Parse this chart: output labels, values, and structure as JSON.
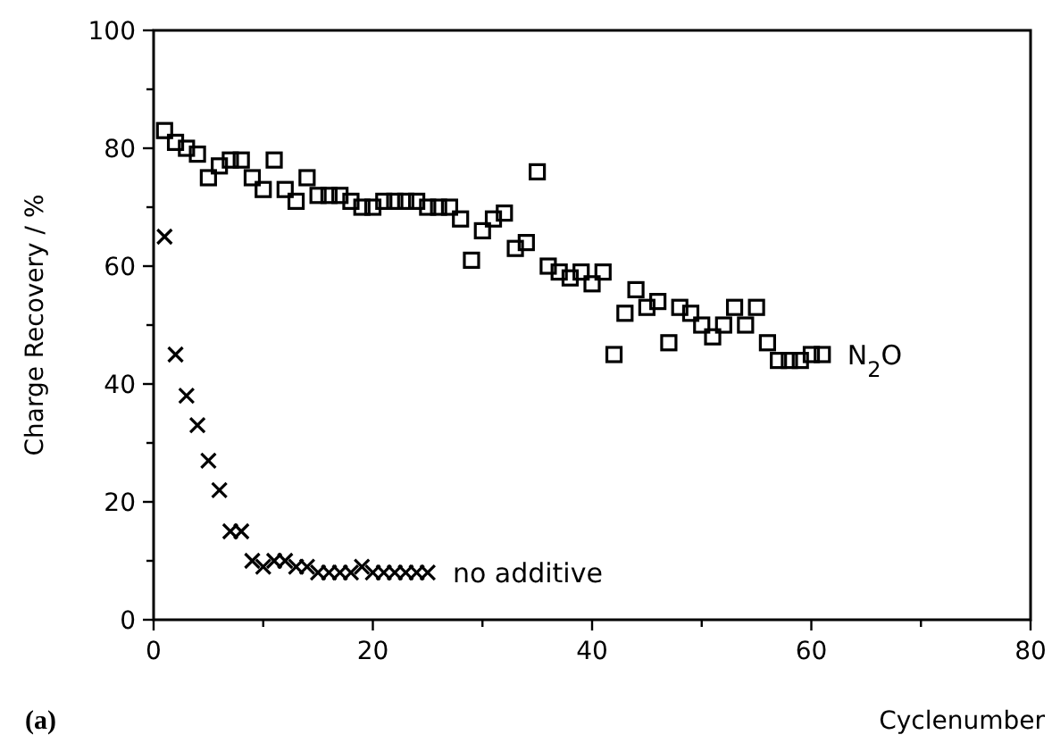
{
  "chart_data": {
    "type": "scatter",
    "xlabel": "Cyclenumber",
    "ylabel": "Charge Recovery / %",
    "xlim": [
      0,
      80
    ],
    "xticks": [
      0,
      {
        "value": 10,
        "label": null
      },
      20,
      {
        "value": 30,
        "label": null
      },
      40,
      {
        "value": 50,
        "label": null
      },
      60,
      {
        "value": 70,
        "label": null
      },
      80
    ],
    "ylim": [
      0,
      100
    ],
    "yticks": [
      0,
      {
        "value": 10,
        "label": null
      },
      20,
      {
        "value": 30,
        "label": null
      },
      40,
      {
        "value": 50,
        "label": null
      },
      60,
      {
        "value": 70,
        "label": null
      },
      80,
      {
        "value": 90,
        "label": null
      },
      100
    ],
    "grid": false,
    "legend": false,
    "annotations": [
      "(a)"
    ],
    "series": [
      {
        "name": "N$_{2}$O",
        "color": "#000000",
        "marker": "square",
        "x": [
          1,
          2,
          3,
          4,
          5,
          6,
          7,
          8,
          9,
          10,
          11,
          12,
          13,
          14,
          15,
          16,
          17,
          18,
          19,
          20,
          21,
          22,
          23,
          24,
          25,
          26,
          27,
          28,
          29,
          30,
          31,
          32,
          33,
          34,
          35,
          36,
          37,
          38,
          39,
          40,
          41,
          42,
          43,
          44,
          45,
          46,
          47,
          48,
          49,
          50,
          51,
          52,
          53,
          54,
          55,
          56,
          57,
          58,
          59,
          60,
          61
        ],
        "values": [
          83,
          81,
          80,
          79,
          75,
          77,
          78,
          78,
          75,
          73,
          78,
          73,
          71,
          75,
          72,
          72,
          72,
          71,
          70,
          70,
          71,
          71,
          71,
          71,
          70,
          70,
          70,
          68,
          61,
          66,
          68,
          69,
          63,
          64,
          76,
          60,
          59,
          58,
          59,
          57,
          59,
          45,
          52,
          56,
          53,
          54,
          47,
          53,
          52,
          50,
          48,
          50,
          53,
          50,
          53,
          47,
          44,
          44,
          44,
          45,
          45
        ]
      },
      {
        "name": "no additive",
        "color": "#000000",
        "marker": "cross",
        "x": [
          1,
          2,
          3,
          4,
          5,
          6,
          7,
          8,
          9,
          10,
          11,
          12,
          13,
          14,
          15,
          16,
          17,
          18,
          19,
          20,
          21,
          22,
          23,
          24,
          25
        ],
        "values": [
          65,
          45,
          38,
          33,
          27,
          22,
          15,
          15,
          10,
          9,
          10,
          10,
          9,
          9,
          8,
          8,
          8,
          8,
          9,
          8,
          8,
          8,
          8,
          8,
          8
        ]
      }
    ]
  }
}
